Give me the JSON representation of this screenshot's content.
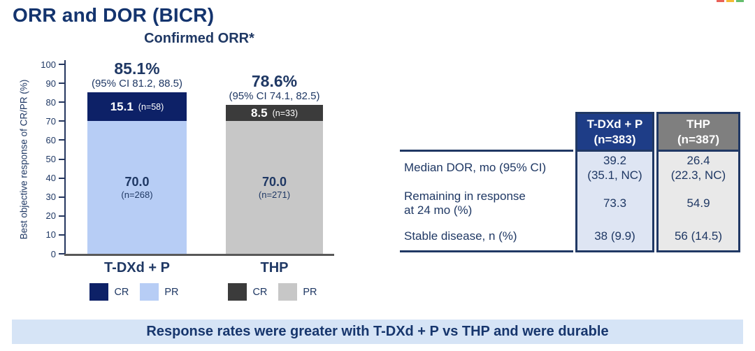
{
  "page": {
    "title": "ORR and DOR (BICR)"
  },
  "logo": {
    "colors": [
      "#e4392e",
      "#f2a900",
      "#3fae49"
    ]
  },
  "chart_data": {
    "type": "bar",
    "stacked": true,
    "title": "Confirmed ORR*",
    "ylabel": "Best objective response of CR/PR (%)",
    "ylim": [
      0,
      100
    ],
    "yticks": [
      0,
      10,
      20,
      30,
      40,
      50,
      60,
      70,
      80,
      90,
      100
    ],
    "legend_position": "below-each-bar",
    "grid": false,
    "groups": [
      {
        "label": "T-DXd + P",
        "total_label": "85.1%",
        "ci_label": "(95% CI 81.2, 88.5)",
        "segments": [
          {
            "name": "CR",
            "value": 15.1,
            "value_label": "15.1",
            "n_label": "(n=58)",
            "color": "#0d2167",
            "text_color": "#ffffff"
          },
          {
            "name": "PR",
            "value": 70.0,
            "value_label": "70.0",
            "n_label": "(n=268)",
            "color": "#b7cdf5",
            "text_color": "#1f3864"
          }
        ]
      },
      {
        "label": "THP",
        "total_label": "78.6%",
        "ci_label": "(95% CI 74.1, 82.5)",
        "segments": [
          {
            "name": "CR",
            "value": 8.5,
            "value_label": "8.5",
            "n_label": "(n=33)",
            "color": "#3b3b3b",
            "text_color": "#ffffff"
          },
          {
            "name": "PR",
            "value": 70.0,
            "value_label": "70.0",
            "n_label": "(n=271)",
            "color": "#c7c7c7",
            "text_color": "#1f3864"
          }
        ]
      }
    ]
  },
  "table": {
    "columns": [
      {
        "line1": "T-DXd + P",
        "line2": "(n=383)",
        "bg": "#1e3d87"
      },
      {
        "line1": "THP",
        "line2": "(n=387)",
        "bg": "#7f7f7f"
      }
    ],
    "rows": [
      {
        "label1": "Median DOR, mo (95% CI)",
        "label2": "",
        "c1_line1": "39.2",
        "c1_line2": "(35.1, NC)",
        "c2_line1": "26.4",
        "c2_line2": "(22.3, NC)"
      },
      {
        "label1": "Remaining in response",
        "label2": "at 24 mo (%)",
        "c1_line1": "73.3",
        "c1_line2": "",
        "c2_line1": "54.9",
        "c2_line2": ""
      },
      {
        "label1": "Stable disease, n (%)",
        "label2": "",
        "c1_line1": "38 (9.9)",
        "c1_line2": "",
        "c2_line1": "56 (14.5)",
        "c2_line2": ""
      }
    ]
  },
  "banner": {
    "text": "Response rates were greater with T-DXd + P vs THP and were durable"
  }
}
